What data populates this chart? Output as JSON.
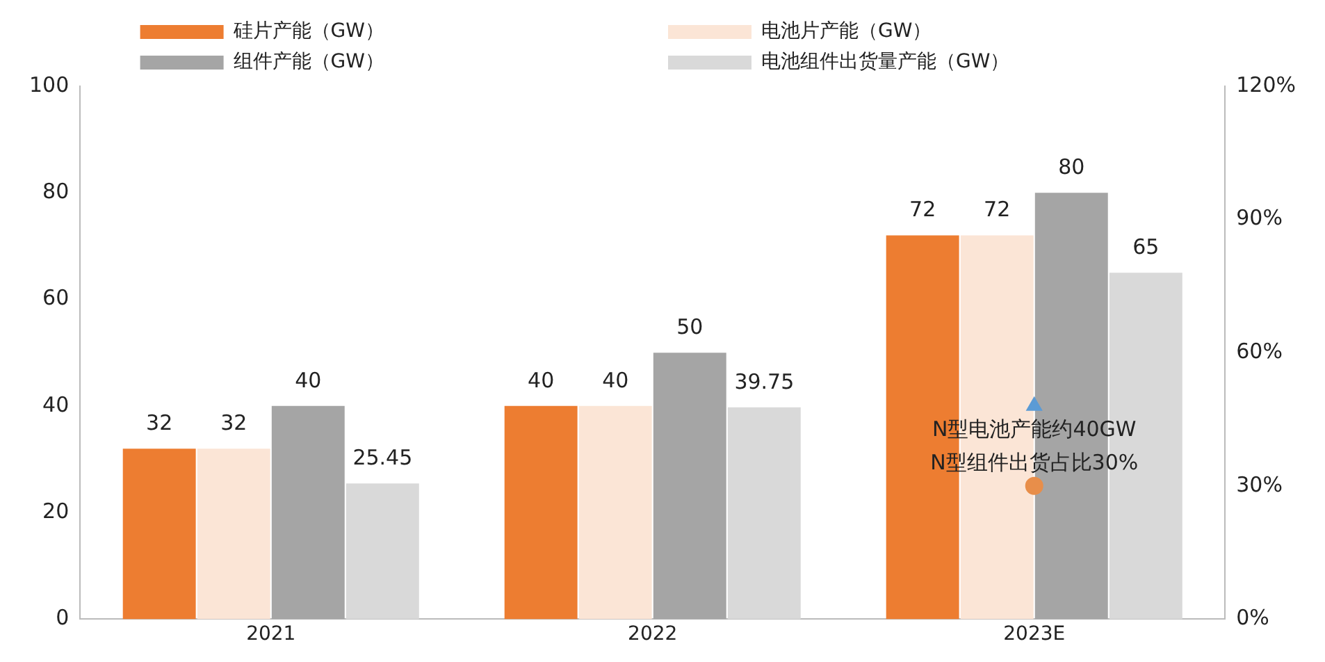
{
  "chart_data": {
    "type": "bar",
    "categories": [
      "2021",
      "2022",
      "2023E"
    ],
    "series": [
      {
        "name": "硅片产能（GW）",
        "color": "#ed7d31",
        "values": [
          32,
          40,
          72
        ],
        "value_labels": [
          "32",
          "40",
          "72"
        ]
      },
      {
        "name": "电池片产能（GW）",
        "color": "#fbe5d6",
        "values": [
          32,
          40,
          72
        ],
        "value_labels": [
          "32",
          "40",
          "72"
        ]
      },
      {
        "name": "组件产能（GW）",
        "color": "#a5a5a5",
        "values": [
          40,
          50,
          80
        ],
        "value_labels": [
          "40",
          "50",
          "80"
        ]
      },
      {
        "name": "电池组件出货量产能（GW）",
        "color": "#d9d9d9",
        "values": [
          25.45,
          39.75,
          65
        ],
        "value_labels": [
          "25.45",
          "39.75",
          "65"
        ]
      },
      {
        "type": "scatter",
        "color": "#5b9bd5",
        "marker": "triangle",
        "values": [
          null,
          null,
          40
        ]
      },
      {
        "type": "scatter",
        "color": "#e88e4a",
        "marker": "circle",
        "axis": "y2",
        "values": [
          null,
          null,
          30
        ]
      }
    ],
    "ylim": [
      0,
      100
    ],
    "yticks": [
      0,
      20,
      40,
      60,
      80,
      100
    ],
    "y2lim": [
      0,
      120
    ],
    "y2ticks": [
      {
        "value": 0,
        "label": "0%"
      },
      {
        "value": 30,
        "label": "30%"
      },
      {
        "value": 60,
        "label": "60%"
      },
      {
        "value": 90,
        "label": "90%"
      },
      {
        "value": 120,
        "label": "120%"
      }
    ],
    "annotations": [
      "N型电池产能约40GW",
      "N型组件出货占比30%"
    ],
    "grid": false,
    "legend": "top"
  }
}
